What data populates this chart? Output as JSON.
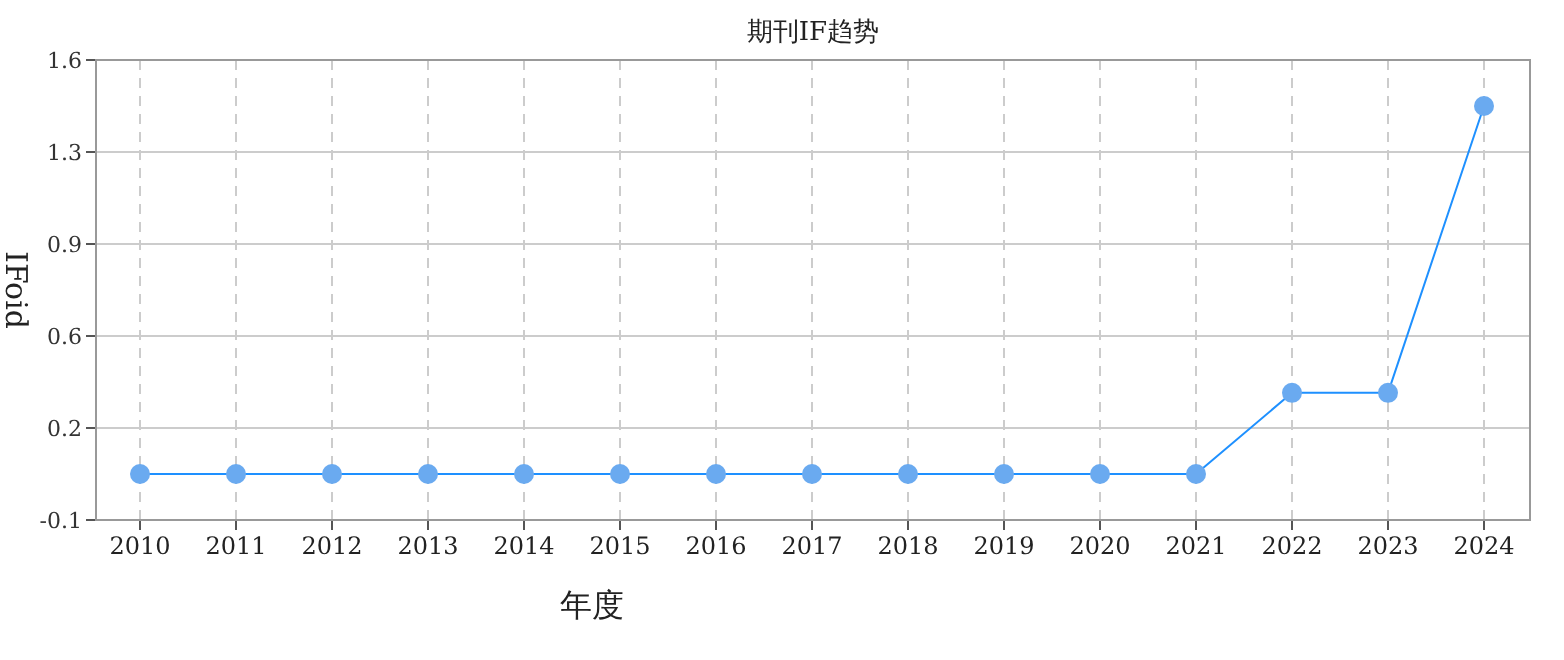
{
  "chart_data": {
    "type": "line",
    "title": "期刊IF趋势",
    "xlabel": "年度",
    "ylabel": "IFoid",
    "categories": [
      "2010",
      "2011",
      "2012",
      "2013",
      "2014",
      "2015",
      "2016",
      "2017",
      "2018",
      "2019",
      "2020",
      "2021",
      "2022",
      "2023",
      "2024"
    ],
    "series": [
      {
        "color": "#1e90ff",
        "values": [
          0.07,
          0.07,
          0.07,
          0.07,
          0.07,
          0.07,
          0.07,
          0.07,
          0.07,
          0.07,
          0.07,
          0.07,
          0.37,
          0.37,
          1.43
        ]
      }
    ],
    "ylim": [
      -0.1,
      1.6
    ],
    "yticks": [
      {
        "value": -0.1,
        "label": "-0.1"
      },
      {
        "value": 0.24,
        "label": "0.2"
      },
      {
        "value": 0.58,
        "label": "0.6"
      },
      {
        "value": 0.92,
        "label": "0.9"
      },
      {
        "value": 1.26,
        "label": "1.3"
      },
      {
        "value": 1.6,
        "label": "1.6"
      }
    ],
    "grid": true,
    "marker": "circle",
    "line_style": "solid"
  }
}
